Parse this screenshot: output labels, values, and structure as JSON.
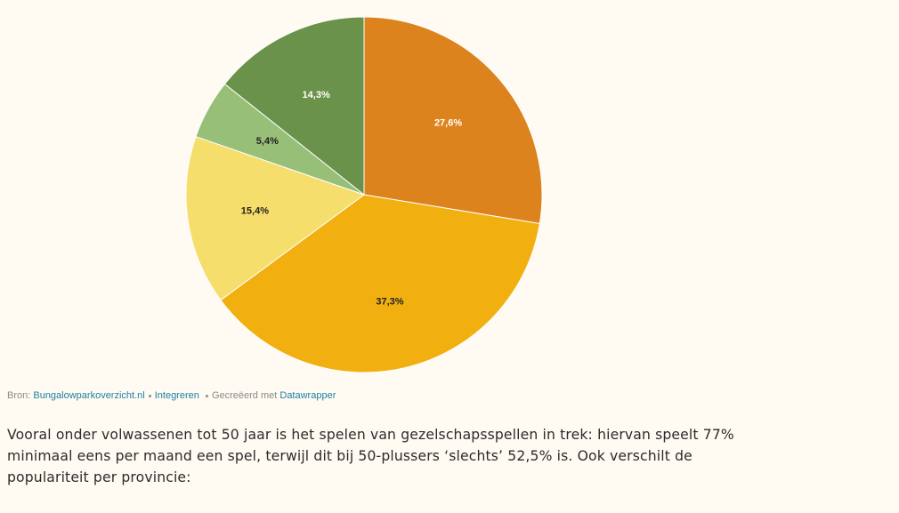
{
  "chart_data": {
    "type": "pie",
    "values": [
      27.6,
      37.3,
      15.4,
      5.4,
      14.3
    ],
    "value_labels": [
      "27,6%",
      "37,3%",
      "15,4%",
      "5,4%",
      "14,3%"
    ],
    "colors": [
      "#dc831e",
      "#f2b010",
      "#f5de6c",
      "#97bf77",
      "#6b924b"
    ],
    "label_colors": [
      "#ffffff",
      "#222222",
      "#222222",
      "#222222",
      "#ffffff"
    ]
  },
  "footer": {
    "source_label": "Bron:",
    "source": "Bungalowparkoverzicht.nl",
    "embed": "Integreren",
    "credit": "Gecreëerd met",
    "credit_link": "Datawrapper"
  },
  "paragraph": "Vooral onder volwassenen tot 50 jaar is het spelen van gezelschapsspellen in trek: hiervan speelt 77% minimaal eens per maand een spel, terwijl dit bij 50-plussers ‘slechts’ 52,5% is. Ook verschilt de populariteit per provincie:"
}
